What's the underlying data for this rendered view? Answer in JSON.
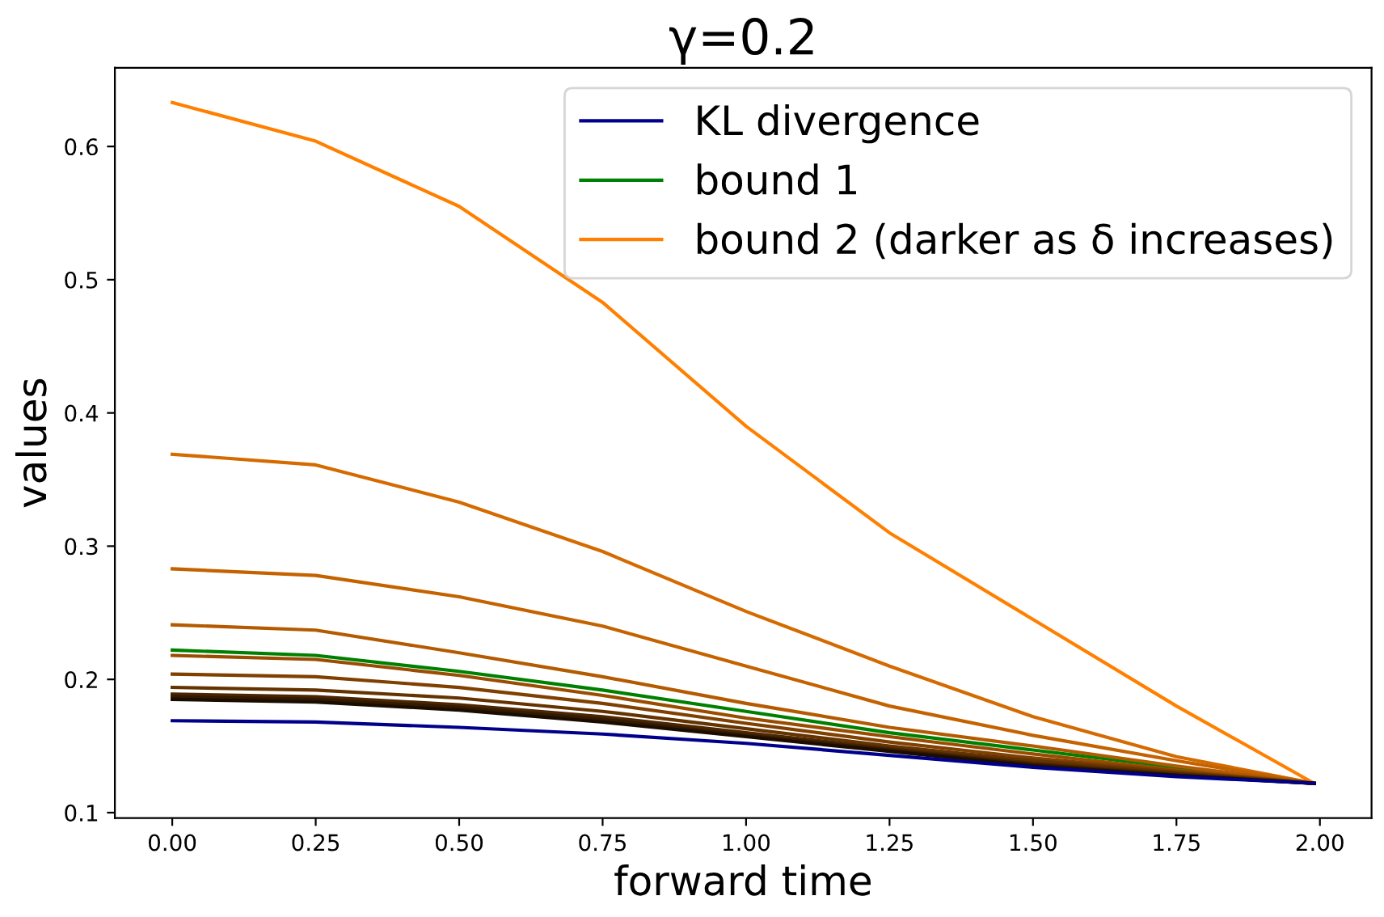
{
  "chart_data": {
    "type": "line",
    "title": "γ=0.2",
    "xlabel": "forward time",
    "ylabel": "values",
    "x": [
      0,
      0.25,
      0.5,
      0.75,
      1.0,
      1.25,
      1.5,
      1.75,
      1.99
    ],
    "series": [
      {
        "name": "KL divergence",
        "color": "#00008b",
        "values": [
          0.169,
          0.168,
          0.164,
          0.159,
          0.152,
          0.143,
          0.134,
          0.127,
          0.122
        ]
      },
      {
        "name": "bound 1",
        "color": "#008000",
        "values": [
          0.222,
          0.218,
          0.206,
          0.192,
          0.176,
          0.16,
          0.147,
          0.134,
          0.122
        ]
      },
      {
        "name": "bound 2 (darker as δ increases)",
        "color": "#ff8000",
        "values": [
          0.633,
          0.604,
          0.555,
          0.483,
          0.39,
          0.31,
          0.245,
          0.18,
          0.122
        ]
      },
      {
        "color": "#d46a00",
        "values": [
          0.369,
          0.361,
          0.333,
          0.296,
          0.251,
          0.21,
          0.172,
          0.142,
          0.122
        ]
      },
      {
        "color": "#c46200",
        "values": [
          0.283,
          0.278,
          0.262,
          0.24,
          0.21,
          0.18,
          0.158,
          0.139,
          0.122
        ]
      },
      {
        "color": "#b45a00",
        "values": [
          0.241,
          0.237,
          0.22,
          0.202,
          0.182,
          0.164,
          0.15,
          0.135,
          0.122
        ]
      },
      {
        "color": "#9a4d00",
        "values": [
          0.218,
          0.215,
          0.203,
          0.188,
          0.171,
          0.157,
          0.144,
          0.132,
          0.122
        ]
      },
      {
        "color": "#7f4000",
        "values": [
          0.204,
          0.202,
          0.194,
          0.182,
          0.167,
          0.153,
          0.141,
          0.131,
          0.122
        ]
      },
      {
        "color": "#653300",
        "values": [
          0.194,
          0.192,
          0.186,
          0.176,
          0.163,
          0.15,
          0.139,
          0.13,
          0.122
        ]
      },
      {
        "color": "#4c2600",
        "values": [
          0.189,
          0.187,
          0.181,
          0.172,
          0.16,
          0.148,
          0.137,
          0.129,
          0.122
        ]
      },
      {
        "color": "#331a00",
        "values": [
          0.187,
          0.185,
          0.179,
          0.17,
          0.158,
          0.147,
          0.136,
          0.128,
          0.122
        ]
      },
      {
        "color": "#1a0d00",
        "values": [
          0.185,
          0.183,
          0.177,
          0.168,
          0.157,
          0.146,
          0.135,
          0.128,
          0.122
        ]
      }
    ],
    "xlim": [
      -0.1,
      2.09
    ],
    "ylim": [
      0.096,
      0.659
    ],
    "xticks": [
      {
        "value": 0,
        "label": "0.00"
      },
      0.25,
      {
        "value": 0.5,
        "label": "0.50"
      },
      0.75,
      {
        "value": 1,
        "label": "1.00"
      },
      1.25,
      {
        "value": 1.5,
        "label": "1.50"
      },
      1.75,
      {
        "value": 2,
        "label": "2.00"
      }
    ],
    "yticks": [
      0.1,
      0.2,
      0.3,
      0.4,
      0.5,
      0.6
    ],
    "grid": false,
    "legend": "top right",
    "marker": "none",
    "line_style": "solid"
  }
}
